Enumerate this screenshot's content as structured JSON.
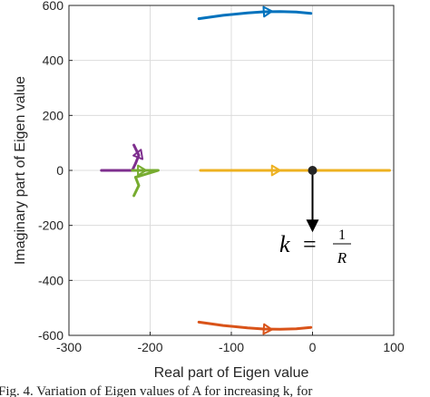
{
  "chart_data": {
    "type": "line",
    "title": "",
    "xlabel": "Real part of Eigen value",
    "ylabel": "Imaginary part of Eigen value",
    "xlim": [
      -300,
      100
    ],
    "ylim": [
      -600,
      600
    ],
    "xticks": [
      -300,
      -200,
      -100,
      0,
      100
    ],
    "yticks": [
      -600,
      -400,
      -200,
      0,
      200,
      400,
      600
    ],
    "xtick_labels": [
      "-300",
      "-200",
      "-100",
      "0",
      "100"
    ],
    "ytick_labels": [
      "-600",
      "-400",
      "-200",
      "0",
      "200",
      "400",
      "600"
    ],
    "grid": true,
    "series": [
      {
        "color": "#0072bd",
        "x": [
          -140,
          -110,
          -80,
          -60,
          -40,
          -20,
          -2
        ],
        "y": [
          552,
          564,
          573,
          577,
          578,
          576,
          571
        ],
        "arrow_at": -60
      },
      {
        "color": "#d95319",
        "x": [
          -140,
          -110,
          -80,
          -60,
          -40,
          -20,
          -2
        ],
        "y": [
          -552,
          -564,
          -573,
          -577,
          -578,
          -576,
          -571
        ],
        "arrow_at": -60
      },
      {
        "color": "#edb120",
        "x": [
          -138,
          -100,
          -50,
          0,
          50,
          95
        ],
        "y": [
          0,
          0,
          0,
          0,
          0,
          0
        ],
        "arrow_at": -50
      },
      {
        "color": "#7e2f8e",
        "x": [
          -260,
          -240,
          -222,
          -218,
          -214,
          -220
        ],
        "y": [
          0,
          0,
          0,
          25,
          55,
          92
        ],
        "arrow_at": -215
      },
      {
        "color": "#77ac30",
        "x": [
          -222,
          -205,
          -190,
          -218,
          -214,
          -220
        ],
        "y": [
          0,
          0,
          0,
          -25,
          -55,
          -92
        ],
        "arrow_at": -215
      }
    ],
    "marker": {
      "x": 0,
      "y": 0,
      "color": "#262626"
    },
    "annotation": {
      "text_k": "k",
      "text_eq": "=",
      "frac_num": "1",
      "frac_den": "R",
      "arrow_from": [
        0,
        0
      ],
      "arrow_to": [
        0,
        -225
      ]
    }
  },
  "caption": "Fig. 4. Variation of Eigen values of A for increasing k, for"
}
